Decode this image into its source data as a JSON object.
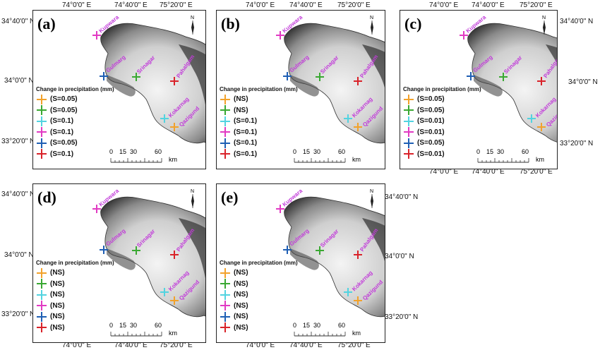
{
  "coords": {
    "lon_74": "74°0'0\" E",
    "lon_7440": "74°40'0\" E",
    "lon_7520": "75°20'0\" E",
    "lat_3440": "34°40'0\" N",
    "lat_340": "34°0'0\" N",
    "lat_3320": "33°20'0\" N"
  },
  "legend_title": "Change in precipitation (mm)",
  "scale": {
    "ticks": [
      "0",
      "15",
      "30",
      "60"
    ],
    "unit": "km"
  },
  "north_label": "N",
  "stations": [
    {
      "name": "Qazigund",
      "color": "#f2a22c"
    },
    {
      "name": "Srinagar",
      "color": "#3aa832"
    },
    {
      "name": "Kokarnag",
      "color": "#52d3e0"
    },
    {
      "name": "Kupwara",
      "color": "#e13ac3"
    },
    {
      "name": "Gulmarg",
      "color": "#1f5fb4"
    },
    {
      "name": "Pahalgam",
      "color": "#d9232a"
    }
  ],
  "panels": [
    {
      "label": "(a)",
      "values": [
        "(S=0.05)",
        "(S=0.05)",
        "(S=0.1)",
        "(S=0.1)",
        "(S=0.05)",
        "(S=0.1)"
      ]
    },
    {
      "label": "(b)",
      "values": [
        "(NS)",
        "(NS)",
        "(S=0.1)",
        "(S=0.1)",
        "(S=0.1)",
        "(S=0.1)"
      ]
    },
    {
      "label": "(c)",
      "values": [
        "(S=0.05)",
        "(S=0.05)",
        "(S=0.01)",
        "(S=0.01)",
        "(S=0.05)",
        "(S=0.01)"
      ]
    },
    {
      "label": "(d)",
      "values": [
        "(NS)",
        "(NS)",
        "(NS)",
        "(NS)",
        "(NS)",
        "(NS)"
      ]
    },
    {
      "label": "(e)",
      "values": [
        "(NS)",
        "(NS)",
        "(NS)",
        "(NS)",
        "(NS)",
        "(NS)"
      ]
    }
  ]
}
